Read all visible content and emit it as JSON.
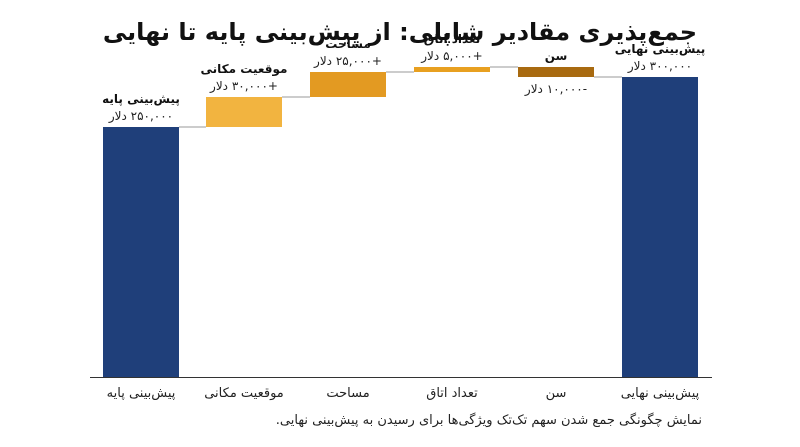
{
  "title": "جمع‌پذیری مقادیر شاپلی: از پیش‌بینی پایه تا نهایی",
  "caption": "نمایش چگونگی جمع شدن سهم تک‌تک ویژگی‌ها برای رسیدن به پیش‌بینی نهایی.",
  "chart_data": {
    "type": "bar",
    "subtype": "waterfall",
    "title": "جمع‌پذیری مقادیر شاپلی: از پیش‌بینی پایه تا نهایی",
    "categories": [
      "پیش‌بینی پایه",
      "موقعیت مکانی",
      "مساحت",
      "تعداد اتاق",
      "سن",
      "پیش‌بینی نهایی"
    ],
    "values": [
      250000,
      30000,
      25000,
      5000,
      -10000,
      300000
    ],
    "kinds": [
      "total",
      "delta",
      "delta",
      "delta",
      "delta",
      "total"
    ],
    "bar_titles": [
      "پیش‌بینی پایه",
      "موقعیت مکانی",
      "مساحت",
      "تعداد اتاق",
      "سن",
      "پیش‌بینی نهایی"
    ],
    "value_labels": [
      "۲۵۰,۰۰۰ دلار",
      "+۳۰,۰۰۰ دلار",
      "+۲۵,۰۰۰ دلار",
      "+۵,۰۰۰ دلار",
      "-۱۰,۰۰۰ دلار",
      "۳۰۰,۰۰۰ دلار"
    ],
    "colors": [
      "#1f3f7a",
      "#f2b440",
      "#e39a22",
      "#e8a020",
      "#a86a10",
      "#1f3f7a"
    ],
    "ylim": [
      0,
      330000
    ],
    "grid": false,
    "legend": "none"
  }
}
